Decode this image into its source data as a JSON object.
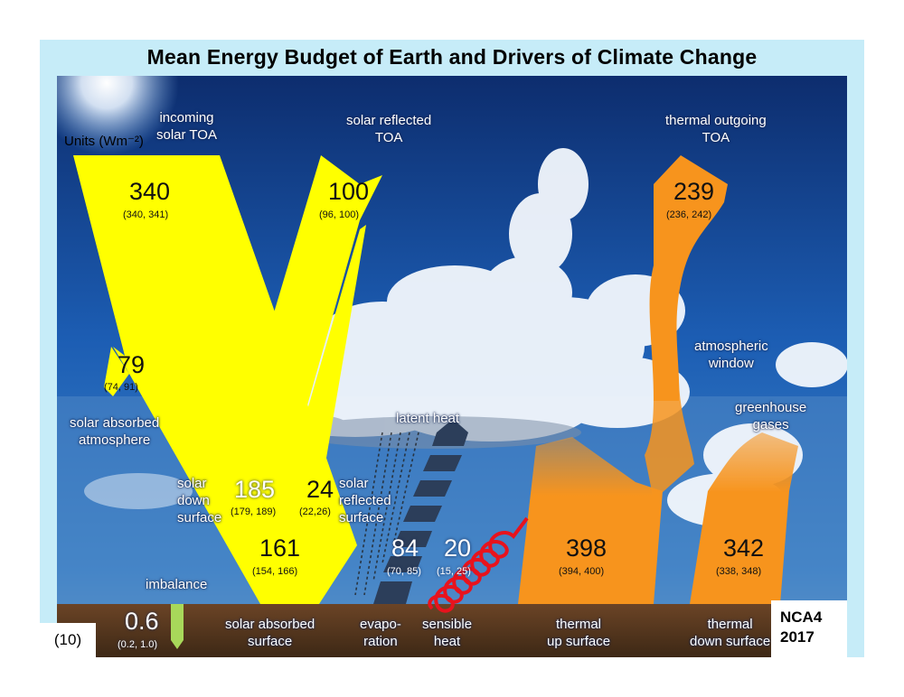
{
  "title": "Mean Energy Budget of Earth and Drivers of Climate Change",
  "units": "Units (Wm⁻²)",
  "figure_number": "(10)",
  "source": {
    "line1": "NCA4",
    "line2": "2017"
  },
  "flows": {
    "incoming_solar": {
      "label1": "incoming",
      "label2": "solar TOA",
      "value": "340",
      "range": "(340, 341)"
    },
    "solar_reflected_toa": {
      "label1": "solar reflected",
      "label2": "TOA",
      "value": "100",
      "range": "(96, 100)"
    },
    "thermal_outgoing": {
      "label1": "thermal outgoing",
      "label2": "TOA",
      "value": "239",
      "range": "(236, 242)"
    },
    "solar_absorbed_atmosphere": {
      "label1": "solar absorbed",
      "label2": "atmosphere",
      "value": "79",
      "range": "(74, 91)"
    },
    "solar_down_surface": {
      "label1": "solar",
      "label2": "down",
      "label3": "surface",
      "value": "185",
      "range": "(179, 189)"
    },
    "solar_reflected_surface": {
      "label1": "solar",
      "label2": "reflected",
      "label3": "surface",
      "value": "24",
      "range": "(22,26)"
    },
    "solar_absorbed_surface": {
      "label1": "solar absorbed",
      "label2": "surface",
      "value": "161",
      "range": "(154, 166)"
    },
    "latent_heat": {
      "label": "latent heat"
    },
    "evaporation": {
      "label1": "evapo-",
      "label2": "ration",
      "value": "84",
      "range": "(70, 85)"
    },
    "sensible_heat": {
      "label1": "sensible",
      "label2": "heat",
      "value": "20",
      "range": "(15, 25)"
    },
    "thermal_up_surface": {
      "label1": "thermal",
      "label2": "up surface",
      "value": "398",
      "range": "(394, 400)"
    },
    "thermal_down_surface": {
      "label1": "thermal",
      "label2": "down surface",
      "value": "342",
      "range": "(338, 348)"
    },
    "atmospheric_window": {
      "label1": "atmospheric",
      "label2": "window"
    },
    "greenhouse_gases": {
      "label1": "greenhouse",
      "label2": "gases"
    },
    "imbalance": {
      "label": "imbalance",
      "value": "0.6",
      "range": "(0.2, 1.0)"
    }
  },
  "colors": {
    "solar": "#ffff00",
    "thermal": "#f7941d",
    "sky": "#1a4fa0",
    "ground": "#5a3a22",
    "frame": "#c6ecf8",
    "sensible": "#e8131d",
    "latent": "#2c3e5a"
  }
}
